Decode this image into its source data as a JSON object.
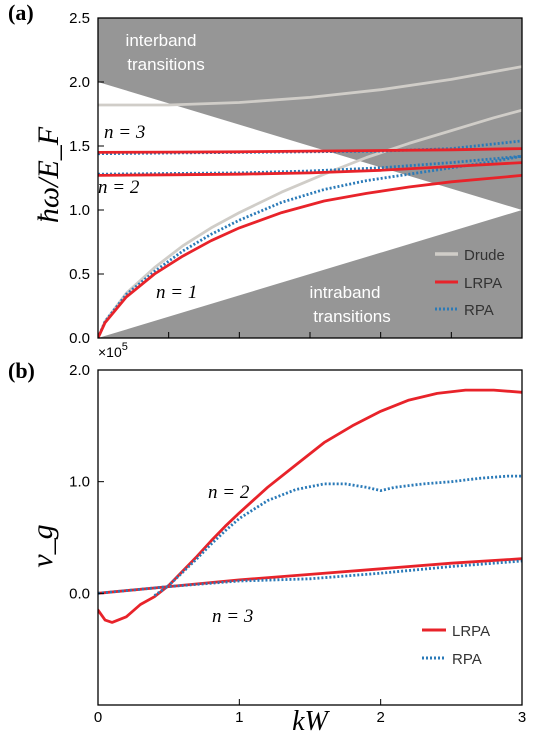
{
  "chart_data": [
    {
      "panel_label": "(a)",
      "type": "line",
      "xlim": [
        0,
        3
      ],
      "ylim": [
        0,
        2.5
      ],
      "ylabel": "ħω/E_F",
      "yticks": [
        "0.0",
        "0.5",
        "1.0",
        "1.5",
        "2.0",
        "2.5"
      ],
      "shaded_regions": [
        {
          "name": "interband",
          "label_line1": "interband",
          "label_line2": "transitions",
          "boundary_x": [
            0,
            3
          ],
          "boundary_y": [
            2.0,
            1.0
          ],
          "side": "above",
          "color": "#969696"
        },
        {
          "name": "intraband",
          "label_line1": "intraband",
          "label_line2": "transitions",
          "boundary_x": [
            0,
            3
          ],
          "boundary_y": [
            0.0,
            1.0
          ],
          "side": "below",
          "color": "#969696"
        }
      ],
      "annotations": [
        {
          "name": "n3",
          "text": "n = 3"
        },
        {
          "name": "n2",
          "text": "n = 2"
        },
        {
          "name": "n1",
          "text": "n = 1"
        }
      ],
      "legend": {
        "placement": "bottom-right",
        "entries": [
          {
            "label": "Drude",
            "color": "#d0cdc8",
            "style": "solid"
          },
          {
            "label": "LRPA",
            "color": "#e8232a",
            "style": "solid"
          },
          {
            "label": "RPA",
            "color": "#2a7ab8",
            "style": "dotted"
          }
        ]
      },
      "series": [
        {
          "name": "Drude",
          "color": "#d0cdc8",
          "style": "solid",
          "x": [
            0.0,
            0.5,
            1.0,
            1.5,
            2.0,
            2.5,
            3.0
          ],
          "y": [
            1.82,
            1.82,
            1.84,
            1.88,
            1.94,
            2.02,
            2.12
          ]
        },
        {
          "name": "Drude",
          "color": "#d0cdc8",
          "style": "solid",
          "x": [
            0.0,
            0.05,
            0.2,
            0.4,
            0.6,
            0.8,
            1.0,
            1.3,
            1.6,
            1.9,
            2.2,
            2.5,
            2.8,
            3.0
          ],
          "y": [
            0.0,
            0.13,
            0.35,
            0.55,
            0.72,
            0.86,
            0.98,
            1.14,
            1.28,
            1.41,
            1.52,
            1.62,
            1.72,
            1.78
          ]
        },
        {
          "name": "RPA",
          "color": "#2a7ab8",
          "style": "dotted",
          "x": [
            0.0,
            0.05,
            0.2,
            0.4,
            0.6,
            0.8,
            1.0,
            1.3,
            1.6,
            1.9,
            2.2,
            2.5,
            2.8,
            3.0
          ],
          "y": [
            0.0,
            0.13,
            0.34,
            0.52,
            0.68,
            0.81,
            0.92,
            1.06,
            1.16,
            1.23,
            1.28,
            1.33,
            1.38,
            1.42
          ]
        },
        {
          "name": "LRPA",
          "color": "#e8232a",
          "style": "solid",
          "x": [
            0.0,
            0.05,
            0.2,
            0.4,
            0.6,
            0.8,
            1.0,
            1.3,
            1.6,
            1.9,
            2.2,
            2.5,
            2.8,
            3.0
          ],
          "y": [
            0.0,
            0.12,
            0.32,
            0.5,
            0.64,
            0.76,
            0.86,
            0.98,
            1.07,
            1.13,
            1.18,
            1.22,
            1.25,
            1.27
          ]
        },
        {
          "name": "RPA",
          "color": "#2a7ab8",
          "style": "dotted",
          "x": [
            0.0,
            0.5,
            1.0,
            1.5,
            2.0,
            2.5,
            3.0
          ],
          "y": [
            1.28,
            1.285,
            1.29,
            1.305,
            1.33,
            1.37,
            1.42
          ]
        },
        {
          "name": "LRPA",
          "color": "#e8232a",
          "style": "solid",
          "x": [
            0.0,
            0.5,
            1.0,
            1.5,
            2.0,
            2.5,
            3.0
          ],
          "y": [
            1.27,
            1.275,
            1.28,
            1.29,
            1.31,
            1.34,
            1.37
          ]
        },
        {
          "name": "RPA",
          "color": "#2a7ab8",
          "style": "dotted",
          "x": [
            0.0,
            0.5,
            1.0,
            1.5,
            2.0,
            2.5,
            3.0
          ],
          "y": [
            1.44,
            1.445,
            1.45,
            1.455,
            1.46,
            1.48,
            1.54
          ]
        },
        {
          "name": "LRPA",
          "color": "#e8232a",
          "style": "solid",
          "x": [
            0.0,
            0.5,
            1.0,
            1.5,
            2.0,
            2.5,
            3.0
          ],
          "y": [
            1.45,
            1.452,
            1.455,
            1.46,
            1.465,
            1.47,
            1.48
          ]
        }
      ]
    },
    {
      "panel_label": "(b)",
      "type": "line",
      "xlim": [
        0,
        3
      ],
      "ylim": [
        -1.0,
        2.0
      ],
      "xlabel": "kW",
      "ylabel": "v_g",
      "y_exponent": "×10",
      "y_exponent_power": "5",
      "xticks": [
        "0",
        "1",
        "2",
        "3"
      ],
      "yticks": [
        "0.0",
        "1.0",
        "2.0"
      ],
      "annotations": [
        {
          "name": "n2",
          "text": "n = 2"
        },
        {
          "name": "n3",
          "text": "n = 3"
        }
      ],
      "legend": {
        "placement": "bottom-right",
        "entries": [
          {
            "label": "LRPA",
            "color": "#e8232a",
            "style": "solid"
          },
          {
            "label": "RPA",
            "color": "#2a7ab8",
            "style": "dotted"
          }
        ]
      },
      "series": [
        {
          "name": "LRPA",
          "color": "#e8232a",
          "style": "solid",
          "x": [
            0.0,
            0.05,
            0.1,
            0.2,
            0.3,
            0.4,
            0.5,
            0.6,
            0.7,
            0.8,
            0.9,
            1.0,
            1.2,
            1.4,
            1.6,
            1.8,
            2.0,
            2.2,
            2.4,
            2.6,
            2.8,
            3.0
          ],
          "y": [
            -0.15,
            -0.24,
            -0.26,
            -0.21,
            -0.1,
            -0.03,
            0.07,
            0.2,
            0.33,
            0.47,
            0.6,
            0.72,
            0.95,
            1.15,
            1.35,
            1.5,
            1.63,
            1.73,
            1.79,
            1.82,
            1.82,
            1.8
          ]
        },
        {
          "name": "RPA",
          "color": "#2a7ab8",
          "style": "dotted",
          "x": [
            0.4,
            0.5,
            0.6,
            0.7,
            0.8,
            0.9,
            1.0,
            1.2,
            1.4,
            1.6,
            1.75,
            1.9,
            2.0,
            2.1,
            2.3,
            2.5,
            2.7,
            2.9,
            3.0
          ],
          "y": [
            -0.02,
            0.07,
            0.19,
            0.31,
            0.44,
            0.56,
            0.67,
            0.83,
            0.93,
            0.98,
            0.98,
            0.95,
            0.92,
            0.95,
            0.98,
            1.0,
            1.03,
            1.05,
            1.05
          ]
        },
        {
          "name": "LRPA",
          "color": "#e8232a",
          "style": "solid",
          "x": [
            0.0,
            0.5,
            1.0,
            1.5,
            2.0,
            2.5,
            3.0
          ],
          "y": [
            0.0,
            0.06,
            0.12,
            0.17,
            0.22,
            0.27,
            0.31
          ]
        },
        {
          "name": "RPA",
          "color": "#2a7ab8",
          "style": "dotted",
          "x": [
            0.0,
            0.5,
            1.0,
            1.5,
            2.0,
            2.5,
            3.0
          ],
          "y": [
            0.0,
            0.06,
            0.11,
            0.13,
            0.18,
            0.24,
            0.29
          ]
        }
      ]
    }
  ]
}
